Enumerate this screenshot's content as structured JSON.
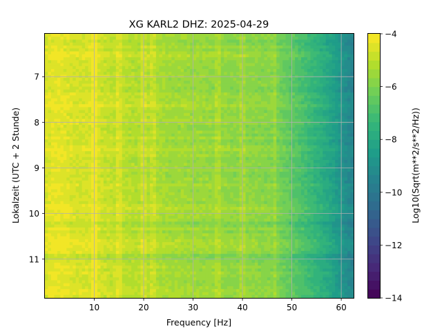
{
  "chart_data": {
    "type": "heatmap",
    "title": "XG KARL2  DHZ: 2025-04-29",
    "xlabel": "Frequency [Hz]",
    "ylabel": "Lokalzeit (UTC + 2 Stunde)",
    "xlim": [
      0,
      62.5
    ],
    "ylim": [
      6.06,
      11.85
    ],
    "y_inverted": true,
    "grid": true,
    "x_ticks": [
      10,
      20,
      30,
      40,
      50,
      60
    ],
    "y_ticks": [
      7,
      8,
      9,
      10,
      11
    ],
    "colorbar": {
      "label": "Log10(Sqrt(m**2/s**2/Hz))",
      "colormap": "viridis",
      "range": [
        -14,
        -4
      ],
      "ticks": [
        -14,
        -12,
        -10,
        -8,
        -6,
        -4
      ],
      "tick_labels": [
        "−14",
        "−12",
        "−10",
        "−8",
        "−6",
        "−4"
      ],
      "levels": 30
    },
    "frequency_profile": {
      "frequency_hz": [
        0,
        2,
        4,
        6,
        8,
        10,
        12,
        14,
        16,
        18,
        20,
        22,
        24,
        26,
        28,
        30,
        32,
        34,
        36,
        38,
        40,
        42,
        44,
        46,
        48,
        50,
        52,
        54,
        56,
        58,
        60,
        62.5
      ],
      "value": [
        -4.6,
        -4.3,
        -4.4,
        -4.6,
        -4.6,
        -4.5,
        -4.8,
        -4.9,
        -5.0,
        -5.1,
        -5.1,
        -5.2,
        -5.3,
        -5.4,
        -5.4,
        -5.5,
        -5.5,
        -5.6,
        -5.6,
        -5.7,
        -5.7,
        -5.7,
        -5.8,
        -5.8,
        -6.2,
        -6.5,
        -6.9,
        -7.3,
        -7.7,
        -8.2,
        -8.8,
        -9.5
      ]
    },
    "bright_frequency_lines_hz": [
      9.9,
      15.0,
      20.0,
      22.0,
      35.0,
      40.0,
      46.5
    ],
    "time_band_offsets": [
      {
        "time": 6.25,
        "delta": -0.25
      },
      {
        "time": 6.55,
        "delta": 0.2
      },
      {
        "time": 7.25,
        "delta": -0.25
      },
      {
        "time": 7.65,
        "delta": 0.15
      },
      {
        "time": 8.15,
        "delta": -0.25
      },
      {
        "time": 8.6,
        "delta": 0.15
      },
      {
        "time": 9.15,
        "delta": -0.3
      },
      {
        "time": 9.85,
        "delta": 0.2
      },
      {
        "time": 10.2,
        "delta": -0.2
      },
      {
        "time": 10.65,
        "delta": 0.2
      },
      {
        "time": 10.95,
        "delta": -0.3
      },
      {
        "time": 11.6,
        "delta": 0.15
      }
    ]
  }
}
